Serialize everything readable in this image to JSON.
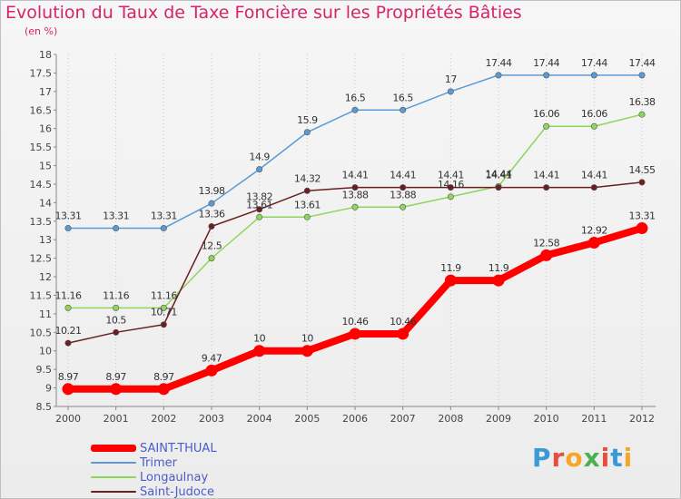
{
  "chart_data": {
    "type": "line",
    "title": "Evolution du Taux de Taxe Foncière sur les Propriétés Bâties",
    "subtitle": "(en %)",
    "xlabel": "",
    "ylabel": "",
    "categories": [
      "2000",
      "2001",
      "2002",
      "2003",
      "2004",
      "2005",
      "2006",
      "2007",
      "2008",
      "2009",
      "2010",
      "2011",
      "2012"
    ],
    "ylim": [
      8.5,
      18
    ],
    "yticks": [
      "8.5",
      "9",
      "9.5",
      "10",
      "10.5",
      "11",
      "11.5",
      "12",
      "12.5",
      "13",
      "13.5",
      "14",
      "14.5",
      "15",
      "15.5",
      "16",
      "16.5",
      "17",
      "17.5",
      "18"
    ],
    "grid": "vertical dotted",
    "legend_position": "bottom-left",
    "series": [
      {
        "name": "SAINT-THUAL",
        "color": "#ff0000",
        "values": [
          8.97,
          8.97,
          8.97,
          9.47,
          10,
          10,
          10.46,
          10.46,
          11.9,
          11.9,
          12.58,
          12.92,
          13.31
        ],
        "labels": [
          "8.97",
          "8.97",
          "8.97",
          "9.47",
          "10",
          "10",
          "10.46",
          "10.46",
          "11.9",
          "11.9",
          "12.58",
          "12.92",
          "13.31"
        ]
      },
      {
        "name": "Trimer",
        "color": "#5b9bd5",
        "values": [
          13.31,
          13.31,
          13.31,
          13.98,
          14.9,
          15.9,
          16.5,
          16.5,
          17,
          17.44,
          17.44,
          17.44,
          17.44
        ],
        "labels": [
          "13.31",
          "13.31",
          "13.31",
          "13.98",
          "14.9",
          "15.9",
          "16.5",
          "16.5",
          "17",
          "17.44",
          "17.44",
          "17.44",
          "17.44"
        ]
      },
      {
        "name": "Longaulnay",
        "color": "#8ed65b",
        "values": [
          11.16,
          11.16,
          11.16,
          12.5,
          13.61,
          13.61,
          13.88,
          13.88,
          14.16,
          14.44,
          16.06,
          16.06,
          16.38
        ],
        "labels": [
          "11.16",
          "11.16",
          "11.16",
          "12.5",
          "13.61",
          "13.61",
          "13.88",
          "13.88",
          "14.16",
          "14.44",
          "16.06",
          "16.06",
          "16.38"
        ]
      },
      {
        "name": "Saint-Judoce",
        "color": "#6b1f24",
        "values": [
          10.21,
          10.5,
          10.71,
          13.36,
          13.82,
          14.32,
          14.41,
          14.41,
          14.41,
          14.41,
          14.41,
          14.41,
          14.55
        ],
        "labels": [
          "10.21",
          "10.5",
          "10.71",
          "13.36",
          "13.82",
          "14.32",
          "14.41",
          "14.41",
          "14.41",
          "14.41",
          "14.41",
          "14.41",
          "14.55"
        ]
      }
    ]
  },
  "logo": {
    "text": "Proxiti",
    "colors": [
      "#3a9ad9",
      "#e94e3d",
      "#f5a623",
      "#4caf50",
      "#e94e3d",
      "#3a9ad9",
      "#f5a623"
    ]
  }
}
